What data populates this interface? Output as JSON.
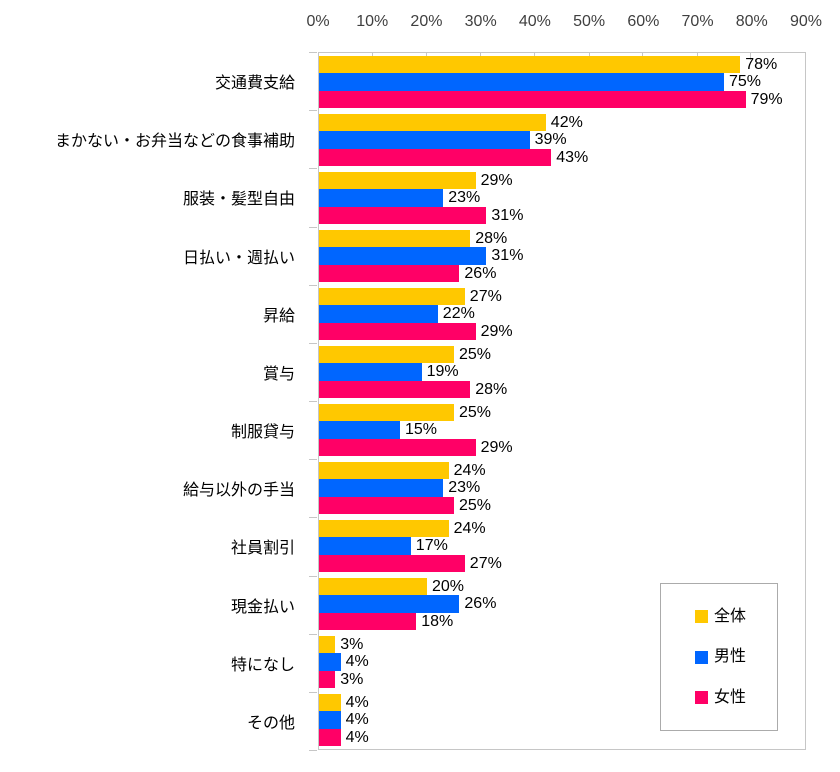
{
  "chart_data": {
    "type": "bar",
    "orientation": "horizontal",
    "title": "",
    "xlabel": "",
    "ylabel": "",
    "xlim": [
      0,
      90
    ],
    "x_tick_labels": [
      "0%",
      "10%",
      "20%",
      "30%",
      "40%",
      "50%",
      "60%",
      "70%",
      "80%",
      "90%"
    ],
    "grid": "none",
    "data_labels": true,
    "value_suffix": "%",
    "legend_position": "inside-bottom-right",
    "categories": [
      "交通費支給",
      "まかない・お弁当などの食事補助",
      "服装・髪型自由",
      "日払い・週払い",
      "昇給",
      "賞与",
      "制服貸与",
      "給与以外の手当",
      "社員割引",
      "現金払い",
      "特になし",
      "その他"
    ],
    "series": [
      {
        "name": "全体",
        "color": "#ffc800",
        "values": [
          78,
          42,
          29,
          28,
          27,
          25,
          25,
          24,
          24,
          20,
          3,
          4
        ]
      },
      {
        "name": "男性",
        "color": "#0066ff",
        "values": [
          75,
          39,
          23,
          31,
          22,
          19,
          15,
          23,
          17,
          26,
          4,
          4
        ]
      },
      {
        "name": "女性",
        "color": "#ff0066",
        "values": [
          79,
          43,
          31,
          26,
          29,
          28,
          29,
          25,
          27,
          18,
          3,
          4
        ]
      }
    ]
  },
  "style": {
    "axis_line_color": "#c6c6c6",
    "axis_text_color": "#3f3f3f",
    "label_text_color": "#000000",
    "background": "#ffffff"
  }
}
